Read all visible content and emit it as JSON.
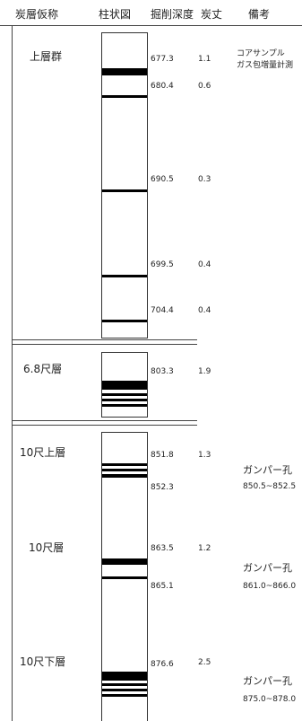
{
  "header": {
    "seam_name": "炭層仮称",
    "column": "柱状図",
    "depth": "掘削深度",
    "thickness": "炭丈",
    "remarks": "備考"
  },
  "seam_groups": [
    {
      "name": "上層群",
      "readings": [
        {
          "depth": "677.3",
          "thickness": "1.1"
        },
        {
          "depth": "680.4",
          "thickness": "0.6"
        },
        {
          "depth": "690.5",
          "thickness": "0.3"
        },
        {
          "depth": "699.5",
          "thickness": "0.4"
        },
        {
          "depth": "704.4",
          "thickness": "0.4"
        }
      ],
      "notes": [
        "コアサンプル",
        "ガス包増量計測"
      ]
    },
    {
      "name": "6.8尺層",
      "readings": [
        {
          "depth": "803.3",
          "thickness": "1.9"
        }
      ]
    },
    {
      "name": "10尺上層",
      "readings": [
        {
          "depth": "851.8",
          "thickness": "1.3"
        },
        {
          "depth": "852.3",
          "thickness": ""
        }
      ],
      "gamma": {
        "label": "ガンパー孔",
        "range": "850.5~852.5"
      }
    },
    {
      "name": "10尺層",
      "readings": [
        {
          "depth": "863.5",
          "thickness": "1.2"
        },
        {
          "depth": "865.1",
          "thickness": ""
        }
      ],
      "gamma": {
        "label": "ガンパー孔",
        "range": "861.0~866.0"
      }
    },
    {
      "name": "10尺下層",
      "readings": [
        {
          "depth": "876.6",
          "thickness": "2.5"
        }
      ],
      "gamma": {
        "label": "ガンパー孔",
        "range": "875.0~878.0"
      }
    }
  ]
}
